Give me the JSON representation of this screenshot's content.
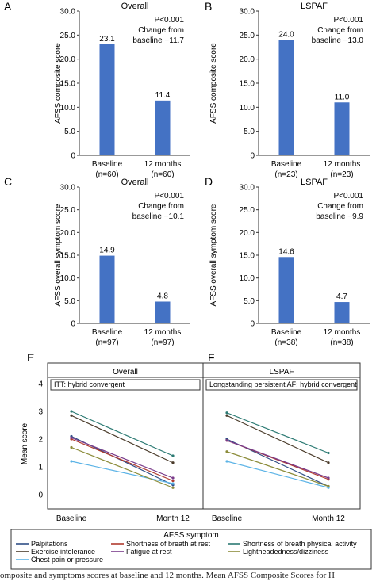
{
  "chart_data": [
    {
      "panel": "A",
      "type": "bar",
      "title": "Overall",
      "ylabel": "AFSS composite score",
      "categories": [
        "Baseline\n(n=60)",
        "12 months\n(n=60)"
      ],
      "values": [
        23.1,
        11.4
      ],
      "data_labels": [
        "23.1",
        "11.4"
      ],
      "ylim": [
        0,
        30
      ],
      "yticks": [
        "0",
        "5.0",
        "10.0",
        "15.0",
        "20.0",
        "25.0",
        "30.0"
      ],
      "annotation": [
        "P<0.001",
        "Change from",
        "baseline −11.7"
      ],
      "color": "#4472c4"
    },
    {
      "panel": "B",
      "type": "bar",
      "title": "LSPAF",
      "ylabel": "AFSS composite score",
      "categories": [
        "Baseline\n(n=23)",
        "12 months\n(n=23)"
      ],
      "values": [
        24.0,
        11.0
      ],
      "data_labels": [
        "24.0",
        "11.0"
      ],
      "ylim": [
        0,
        30
      ],
      "yticks": [
        "0",
        "5.0",
        "10.0",
        "15.0",
        "20.0",
        "25.0",
        "30.0"
      ],
      "annotation": [
        "P<0.001",
        "Change from",
        "baseline −13.0"
      ],
      "color": "#4472c4"
    },
    {
      "panel": "C",
      "type": "bar",
      "title": "Overall",
      "ylabel": "AFSS overall symptom score",
      "categories": [
        "Baseline\n(n=97)",
        "12 months\n(n=97)"
      ],
      "values": [
        14.9,
        4.8
      ],
      "data_labels": [
        "14.9",
        "4.8"
      ],
      "ylim": [
        0,
        30
      ],
      "yticks": [
        "0",
        "5.0",
        "10.0",
        "15.0",
        "20.0",
        "25.0",
        "30.0"
      ],
      "annotation": [
        "P<0.001",
        "Change from",
        "baseline −10.1"
      ],
      "color": "#4472c4"
    },
    {
      "panel": "D",
      "type": "bar",
      "title": "LSPAF",
      "ylabel": "AFSS overall symptom score",
      "categories": [
        "Baseline\n(n=38)",
        "12 months\n(n=38)"
      ],
      "values": [
        14.6,
        4.7
      ],
      "data_labels": [
        "14.6",
        "4.7"
      ],
      "ylim": [
        0,
        30
      ],
      "yticks": [
        "0",
        "5.0",
        "10.0",
        "15.0",
        "20.0",
        "25.0",
        "30.0"
      ],
      "annotation": [
        "P<0.001",
        "Change from",
        "baseline −9.9"
      ],
      "color": "#4472c4"
    },
    {
      "panel": "E",
      "type": "line",
      "title": "Overall",
      "subtitle": "ITT: hybrid convergent",
      "ylabel": "Mean score",
      "x": [
        "Baseline",
        "Month 12"
      ],
      "ylim": [
        0,
        4
      ],
      "yticks": [
        "0",
        "1",
        "2",
        "3",
        "4"
      ],
      "series": [
        {
          "name": "Palpitations",
          "values": [
            2.1,
            0.35
          ],
          "color": "#2f4e86"
        },
        {
          "name": "Exercise intolerance",
          "values": [
            2.85,
            1.15
          ],
          "color": "#4a3b2a"
        },
        {
          "name": "Chest pain or pressure",
          "values": [
            1.2,
            0.4
          ],
          "color": "#5bb3e6"
        },
        {
          "name": "Shortness of breath at rest",
          "values": [
            2.0,
            0.5
          ],
          "color": "#b03a2e"
        },
        {
          "name": "Fatigue at rest",
          "values": [
            2.05,
            0.6
          ],
          "color": "#7a3b8a"
        },
        {
          "name": "Shortness of breath physical activity",
          "values": [
            3.0,
            1.4
          ],
          "color": "#2c7a73"
        },
        {
          "name": "Lightheadedness/dizziness",
          "values": [
            1.7,
            0.25
          ],
          "color": "#8c8c3a"
        }
      ]
    },
    {
      "panel": "F",
      "type": "line",
      "title": "LSPAF",
      "subtitle": "Longstanding persistent AF: hybrid convergent",
      "ylabel": "",
      "x": [
        "Baseline",
        "Month 12"
      ],
      "ylim": [
        0,
        4
      ],
      "yticks": [],
      "series": [
        {
          "name": "Palpitations",
          "values": [
            2.0,
            0.3
          ],
          "color": "#2f4e86"
        },
        {
          "name": "Exercise intolerance",
          "values": [
            2.85,
            1.15
          ],
          "color": "#4a3b2a"
        },
        {
          "name": "Chest pain or pressure",
          "values": [
            1.2,
            0.25
          ],
          "color": "#5bb3e6"
        },
        {
          "name": "Shortness of breath at rest",
          "values": [
            1.95,
            0.55
          ],
          "color": "#b03a2e"
        },
        {
          "name": "Fatigue at rest",
          "values": [
            1.95,
            0.6
          ],
          "color": "#7a3b8a"
        },
        {
          "name": "Shortness of breath physical activity",
          "values": [
            2.95,
            1.5
          ],
          "color": "#2c7a73"
        },
        {
          "name": "Lightheadedness/dizziness",
          "values": [
            1.55,
            0.3
          ],
          "color": "#8c8c3a"
        }
      ]
    }
  ],
  "legend": {
    "title": "AFSS symptom",
    "items": [
      {
        "label": "Palpitations",
        "color": "#2f4e86"
      },
      {
        "label": "Shortness of breath at rest",
        "color": "#b03a2e"
      },
      {
        "label": "Shortness of breath physical activity",
        "color": "#2c7a73"
      },
      {
        "label": "Exercise intolerance",
        "color": "#4a3b2a"
      },
      {
        "label": "Fatigue at rest",
        "color": "#7a3b8a"
      },
      {
        "label": "Lightheadedness/dizziness",
        "color": "#8c8c3a"
      },
      {
        "label": "Chest pain or pressure",
        "color": "#5bb3e6"
      }
    ]
  },
  "caption": "omposite and symptoms scores at baseline and 12 months. Mean AFSS Composite Scores for H"
}
